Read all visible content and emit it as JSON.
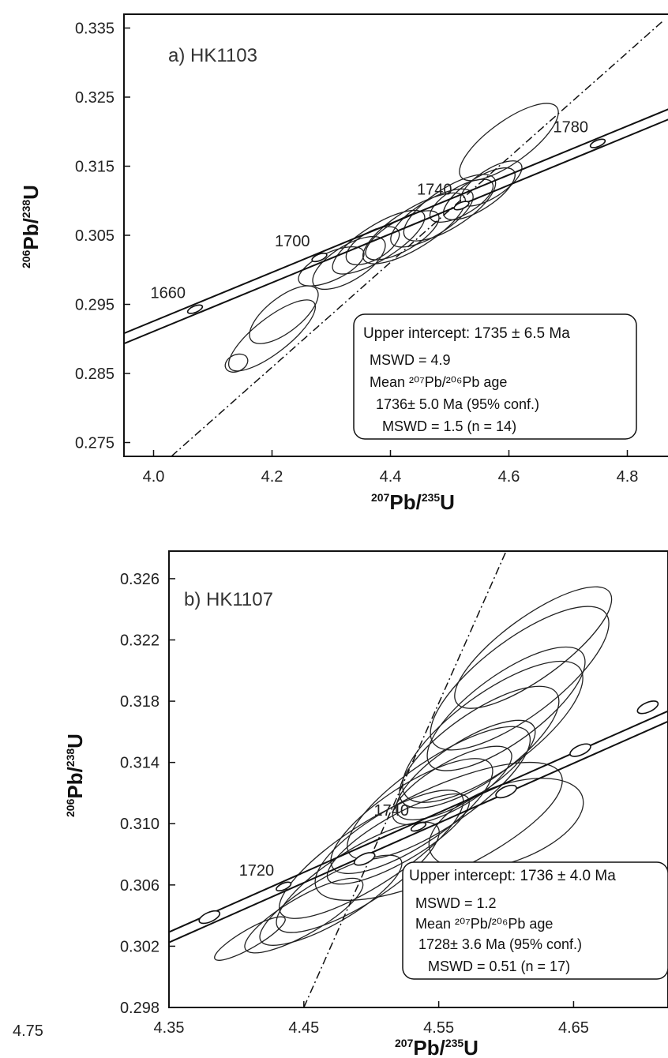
{
  "chart_data": [
    {
      "type": "scatter",
      "panel_label": "a) HK1103",
      "xlabel": {
        "pre": "207",
        "main": "Pb/",
        "sup2": "235",
        "post": "U"
      },
      "ylabel": {
        "pre": "206",
        "main": "Pb/",
        "sup2": "238",
        "post": "U"
      },
      "xlim": [
        3.95,
        4.87
      ],
      "ylim": [
        0.273,
        0.337
      ],
      "x_ticks": [
        "4.0",
        "4.2",
        "4.4",
        "4.6",
        "4.8"
      ],
      "x_tick_values": [
        4.0,
        4.2,
        4.4,
        4.6,
        4.8
      ],
      "y_ticks": [
        "0.275",
        "0.285",
        "0.295",
        "0.305",
        "0.315",
        "0.325",
        "0.335"
      ],
      "y_tick_values": [
        0.275,
        0.285,
        0.295,
        0.305,
        0.315,
        0.325,
        0.335
      ],
      "concordia_ages": [
        {
          "label": "1660",
          "x": 4.07,
          "y": 0.2943
        },
        {
          "label": "1700",
          "x": 4.28,
          "y": 0.3018
        },
        {
          "label": "1740",
          "x": 4.52,
          "y": 0.3093
        },
        {
          "label": "1780",
          "x": 4.75,
          "y": 0.3183
        }
      ],
      "discordia": {
        "x1": 4.03,
        "y1": 0.273,
        "x2": 4.86,
        "y2": 0.336
      },
      "ellipses": [
        {
          "x": 4.14,
          "y": 0.2865,
          "rx": 0.02,
          "ry": 0.0012,
          "angle": -25
        },
        {
          "x": 4.2,
          "y": 0.2905,
          "rx": 0.09,
          "ry": 0.0025,
          "angle": -38
        },
        {
          "x": 4.22,
          "y": 0.2935,
          "rx": 0.07,
          "ry": 0.0025,
          "angle": -38
        },
        {
          "x": 4.3,
          "y": 0.3005,
          "rx": 0.06,
          "ry": 0.002,
          "angle": -25
        },
        {
          "x": 4.33,
          "y": 0.301,
          "rx": 0.07,
          "ry": 0.0025,
          "angle": -32
        },
        {
          "x": 4.37,
          "y": 0.3035,
          "rx": 0.05,
          "ry": 0.002,
          "angle": -30
        },
        {
          "x": 4.38,
          "y": 0.304,
          "rx": 0.09,
          "ry": 0.0025,
          "angle": -32
        },
        {
          "x": 4.42,
          "y": 0.305,
          "rx": 0.07,
          "ry": 0.0022,
          "angle": -30
        },
        {
          "x": 4.44,
          "y": 0.306,
          "rx": 0.1,
          "ry": 0.0028,
          "angle": -32
        },
        {
          "x": 4.47,
          "y": 0.3075,
          "rx": 0.08,
          "ry": 0.0025,
          "angle": -32
        },
        {
          "x": 4.5,
          "y": 0.309,
          "rx": 0.09,
          "ry": 0.0028,
          "angle": -33
        },
        {
          "x": 4.52,
          "y": 0.31,
          "rx": 0.06,
          "ry": 0.002,
          "angle": -30
        },
        {
          "x": 4.55,
          "y": 0.311,
          "rx": 0.07,
          "ry": 0.0022,
          "angle": -33
        },
        {
          "x": 4.57,
          "y": 0.3125,
          "rx": 0.06,
          "ry": 0.002,
          "angle": -33
        },
        {
          "x": 4.6,
          "y": 0.3185,
          "rx": 0.1,
          "ry": 0.003,
          "angle": -36
        }
      ],
      "result_box": {
        "upper_intercept": "Upper intercept: 1735 ± 6.5 Ma",
        "mswd_1": "MSWD = 4.9",
        "mean_label": "Mean ²⁰⁷Pb/²⁰⁶Pb age",
        "mean_age": "1736± 5.0 Ma (95% conf.)",
        "mswd_2": "MSWD = 1.5 (n = 14)"
      }
    },
    {
      "type": "scatter",
      "panel_label": "b) HK1107",
      "xlabel": {
        "pre": "207",
        "main": "Pb/",
        "sup2": "235",
        "post": "U"
      },
      "ylabel": {
        "pre": "206",
        "main": "Pb/",
        "sup2": "238",
        "post": "U"
      },
      "xlim": [
        4.35,
        4.72
      ],
      "ylim": [
        0.298,
        0.3278
      ],
      "x_ticks": [
        "4.35",
        "4.45",
        "4.55",
        "4.65"
      ],
      "x_tick_values": [
        4.35,
        4.45,
        4.55,
        4.65
      ],
      "y_ticks": [
        "0.298",
        "0.302",
        "0.306",
        "0.310",
        "0.314",
        "0.318",
        "0.322",
        "0.326"
      ],
      "y_tick_values": [
        0.298,
        0.302,
        0.306,
        0.31,
        0.314,
        0.318,
        0.322,
        0.326
      ],
      "concordia_ages": [
        {
          "label": "1720",
          "x": 4.435,
          "y": 0.3059
        },
        {
          "label": "1740",
          "x": 4.535,
          "y": 0.3098
        }
      ],
      "extra_markers": [
        {
          "x": 4.38,
          "y": 0.3039
        },
        {
          "x": 4.495,
          "y": 0.3077
        },
        {
          "x": 4.6,
          "y": 0.3121
        },
        {
          "x": 4.655,
          "y": 0.3148
        },
        {
          "x": 4.705,
          "y": 0.3176
        }
      ],
      "discordia": {
        "x1": 4.45,
        "y1": 0.298,
        "x2": 4.6,
        "y2": 0.3278
      },
      "ellipses": [
        {
          "x": 4.41,
          "y": 0.3025,
          "rx": 0.03,
          "ry": 0.0006,
          "angle": -30
        },
        {
          "x": 4.45,
          "y": 0.304,
          "rx": 0.05,
          "ry": 0.0012,
          "angle": -30
        },
        {
          "x": 4.47,
          "y": 0.305,
          "rx": 0.06,
          "ry": 0.0015,
          "angle": -30
        },
        {
          "x": 4.49,
          "y": 0.3065,
          "rx": 0.07,
          "ry": 0.0018,
          "angle": -32
        },
        {
          "x": 4.5,
          "y": 0.308,
          "rx": 0.08,
          "ry": 0.002,
          "angle": -33
        },
        {
          "x": 4.52,
          "y": 0.309,
          "rx": 0.06,
          "ry": 0.0015,
          "angle": -30
        },
        {
          "x": 4.53,
          "y": 0.3105,
          "rx": 0.07,
          "ry": 0.002,
          "angle": -33
        },
        {
          "x": 4.55,
          "y": 0.312,
          "rx": 0.08,
          "ry": 0.0022,
          "angle": -34
        },
        {
          "x": 4.56,
          "y": 0.3125,
          "rx": 0.05,
          "ry": 0.0015,
          "angle": -30
        },
        {
          "x": 4.57,
          "y": 0.3135,
          "rx": 0.06,
          "ry": 0.0018,
          "angle": -33
        },
        {
          "x": 4.58,
          "y": 0.315,
          "rx": 0.07,
          "ry": 0.0022,
          "angle": -35
        },
        {
          "x": 4.59,
          "y": 0.316,
          "rx": 0.08,
          "ry": 0.0025,
          "angle": -36
        },
        {
          "x": 4.6,
          "y": 0.3175,
          "rx": 0.07,
          "ry": 0.0022,
          "angle": -36
        },
        {
          "x": 4.61,
          "y": 0.3195,
          "rx": 0.08,
          "ry": 0.0025,
          "angle": -37
        },
        {
          "x": 4.62,
          "y": 0.3215,
          "rx": 0.07,
          "ry": 0.002,
          "angle": -36
        },
        {
          "x": 4.55,
          "y": 0.3095,
          "rx": 0.1,
          "ry": 0.0028,
          "angle": -25
        },
        {
          "x": 4.6,
          "y": 0.31,
          "rx": 0.06,
          "ry": 0.0025,
          "angle": -20
        }
      ],
      "result_box": {
        "upper_intercept": "Upper intercept: 1736 ± 4.0 Ma",
        "mswd_1": "MSWD = 1.2",
        "mean_label": "Mean ²⁰⁷Pb/²⁰⁶Pb age",
        "mean_age": "1728± 3.6 Ma (95% conf.)",
        "mswd_2": "MSWD = 0.51 (n = 17)"
      }
    }
  ],
  "corner_label": "4.75"
}
